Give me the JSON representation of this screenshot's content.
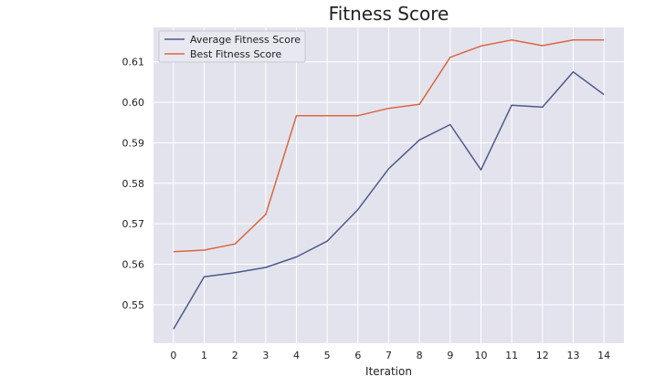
{
  "chart_data": {
    "type": "line",
    "title": "Fitness Score",
    "xlabel": "Iteration",
    "ylabel": "",
    "x": [
      0,
      1,
      2,
      3,
      4,
      5,
      6,
      7,
      8,
      9,
      10,
      11,
      12,
      13,
      14
    ],
    "xlim": [
      -0.65,
      14.65
    ],
    "ylim": [
      0.5405,
      0.6185
    ],
    "yticks": [
      0.55,
      0.56,
      0.57,
      0.58,
      0.59,
      0.6,
      0.61
    ],
    "ytick_labels": [
      "0.55",
      "0.56",
      "0.57",
      "0.58",
      "0.59",
      "0.60",
      "0.61"
    ],
    "grid": true,
    "legend_position": "top-left",
    "series": [
      {
        "name": "Average Fitness Score",
        "color": "#4c5b8c",
        "values": [
          0.544,
          0.5569,
          0.5579,
          0.5592,
          0.5618,
          0.5657,
          0.5735,
          0.5836,
          0.5907,
          0.5945,
          0.5833,
          0.5993,
          0.5988,
          0.6075,
          0.6019
        ]
      },
      {
        "name": "Best Fitness Score",
        "color": "#d9683f",
        "values": [
          0.5631,
          0.5635,
          0.565,
          0.5723,
          0.5967,
          0.5967,
          0.5967,
          0.5985,
          0.5995,
          0.6111,
          0.6139,
          0.6154,
          0.614,
          0.6154,
          0.6154
        ]
      }
    ]
  }
}
